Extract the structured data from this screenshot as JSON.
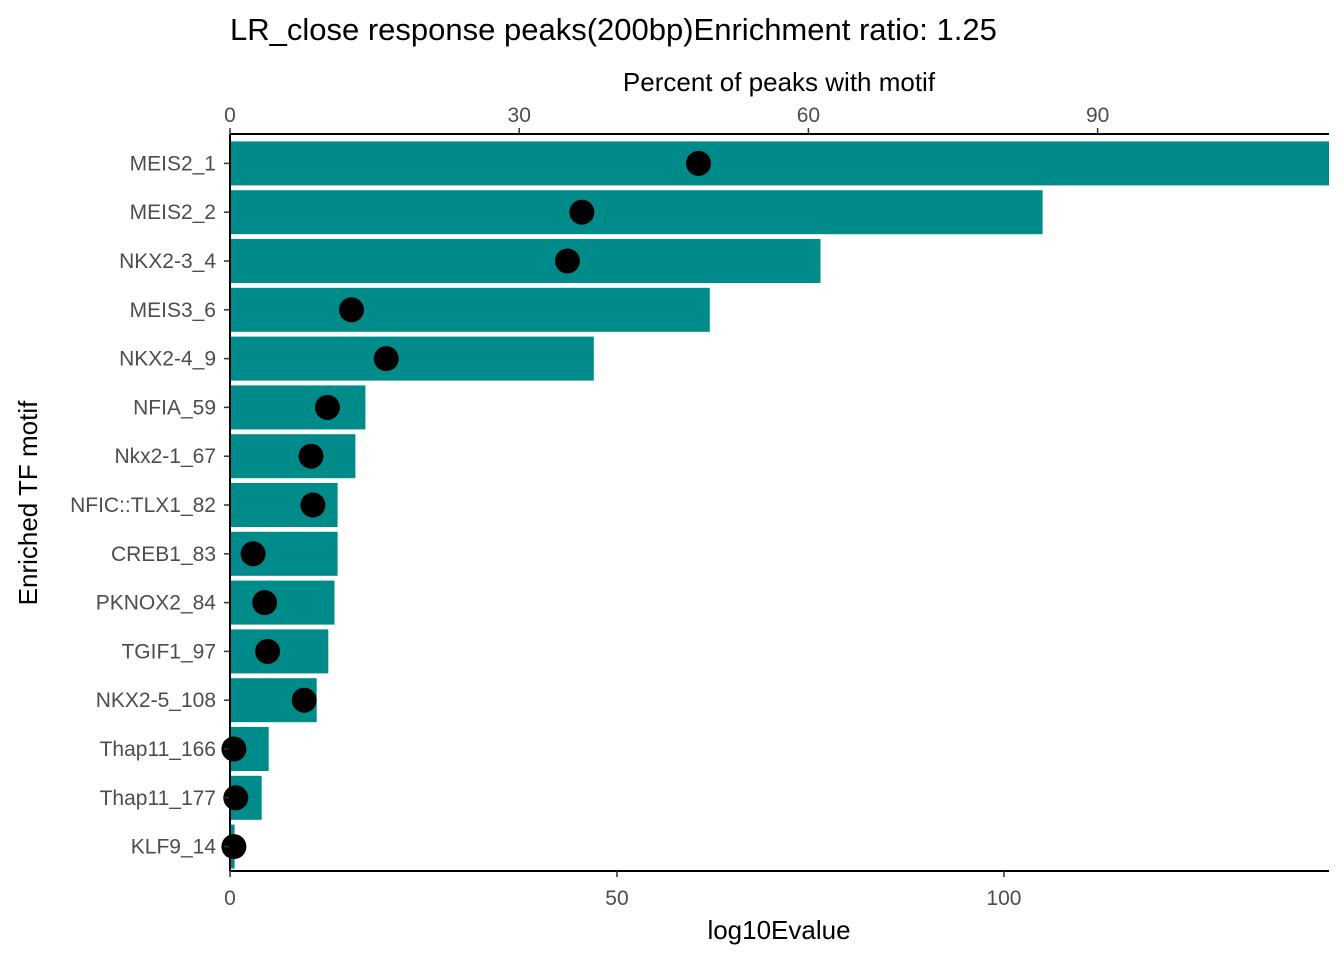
{
  "chart_data": {
    "type": "bar",
    "orientation": "horizontal",
    "title": "LR_close response peaks(200bp)Enrichment ratio: 1.25",
    "xlabel": "log10Evalue",
    "x2label": "Percent of peaks with motif",
    "ylabel": "Enriched TF motif",
    "xlim": [
      0,
      142
    ],
    "x2lim": [
      0,
      114
    ],
    "xticks": [
      0,
      50,
      100
    ],
    "x2ticks": [
      0,
      30,
      60,
      90
    ],
    "bar_color": "#008B8B",
    "point_color": "#000000",
    "categories": [
      "MEIS2_1",
      "MEIS2_2",
      "NKX2-3_4",
      "MEIS3_6",
      "NKX2-4_9",
      "NFIA_59",
      "Nkx2-1_67",
      "NFIC::TLX1_82",
      "CREB1_83",
      "PKNOX2_84",
      "TGIF1_97",
      "NKX2-5_108",
      "Thap11_166",
      "Thap11_177",
      "KLF9_14"
    ],
    "series": [
      {
        "values": [
          142.5,
          105.0,
          76.3,
          62.0,
          47.0,
          17.5,
          16.2,
          13.9,
          13.9,
          13.5,
          12.7,
          11.2,
          5.0,
          4.1,
          0.6
        ],
        "axis": "bottom",
        "mark": "bar"
      },
      {
        "values": [
          48.6,
          36.5,
          35.0,
          12.6,
          16.2,
          10.1,
          8.4,
          8.6,
          2.4,
          3.6,
          3.9,
          7.7,
          0.4,
          0.6,
          0.4
        ],
        "axis": "top",
        "mark": "point"
      }
    ],
    "grid": false,
    "legend": "none"
  }
}
